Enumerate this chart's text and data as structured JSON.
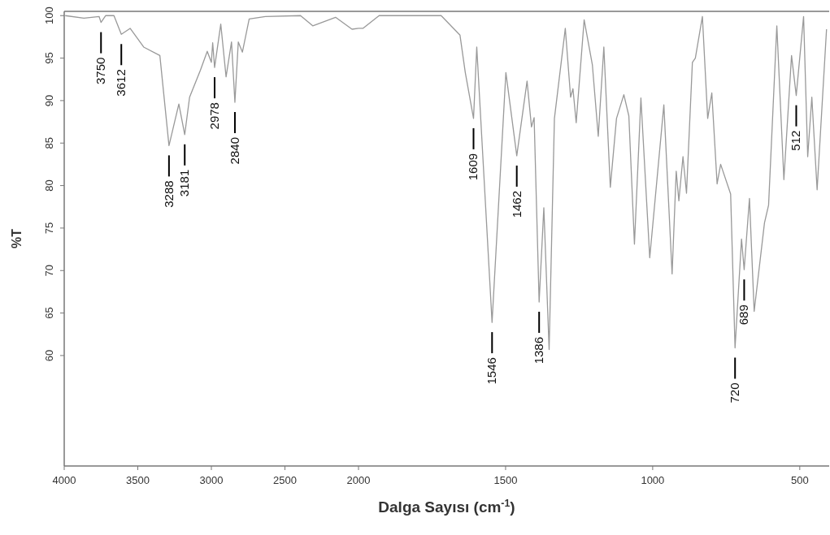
{
  "chart_data": [
    {
      "type": "line",
      "ylabel": "%T",
      "xlim": [
        4000,
        2000
      ],
      "xticks": [
        4000,
        3500,
        3000,
        2500,
        2000
      ],
      "ylim": [
        47,
        100.5
      ],
      "yticks": [
        60,
        65,
        70,
        75,
        80,
        85,
        90,
        95,
        100
      ],
      "series": [
        {
          "color": "#999999",
          "x": [
            3993,
            3866,
            3763,
            3750,
            3718,
            3662,
            3612,
            3552,
            3460,
            3350,
            3288,
            3221,
            3181,
            3148,
            3074,
            3028,
            3000,
            2991,
            2978,
            2936,
            2900,
            2863,
            2840,
            2817,
            2789,
            2743,
            2633,
            2394,
            2311,
            2156,
            2044,
            2000
          ],
          "values": [
            100,
            99.7,
            99.9,
            99.2,
            100,
            100,
            97.8,
            98.5,
            96.3,
            95.3,
            84.7,
            89.6,
            86.0,
            90.4,
            93.6,
            95.8,
            94.5,
            96.8,
            93.9,
            99.0,
            92.8,
            96.9,
            89.8,
            96.9,
            95.7,
            99.6,
            99.9,
            100,
            98.8,
            99.8,
            98.4,
            98.5
          ]
        }
      ],
      "annotations": [
        {
          "text": "3750",
          "x": 3750,
          "y": 99.2
        },
        {
          "text": "3612",
          "x": 3612,
          "y": 97.8
        },
        {
          "text": "3288",
          "x": 3288,
          "y": 84.7
        },
        {
          "text": "3181",
          "x": 3181,
          "y": 86.0
        },
        {
          "text": "2978",
          "x": 2978,
          "y": 93.9
        },
        {
          "text": "2840",
          "x": 2840,
          "y": 89.8
        }
      ]
    },
    {
      "type": "line",
      "xlabel": "Dalga Sayısı (cm$^{-1}$)",
      "xlim": [
        2000,
        400
      ],
      "xticks": [
        1500,
        1000,
        500
      ],
      "ylim": [
        47,
        100.5
      ],
      "tick_labels": "x",
      "series": [
        {
          "color": "#999999",
          "x": [
            2000,
            1985,
            1930,
            1738,
            1719,
            1655,
            1637,
            1609,
            1598,
            1546,
            1499,
            1462,
            1427,
            1412,
            1403,
            1386,
            1370,
            1352,
            1334,
            1297,
            1279,
            1271,
            1260,
            1233,
            1205,
            1185,
            1166,
            1144,
            1123,
            1098,
            1081,
            1062,
            1040,
            1010,
            962,
            934,
            920,
            911,
            897,
            885,
            865,
            855,
            831,
            813,
            799,
            781,
            769,
            735,
            720,
            698,
            689,
            671,
            655,
            620,
            606,
            578,
            554,
            528,
            512,
            487,
            473,
            459,
            441,
            409
          ],
          "values": [
            98.5,
            98.5,
            100,
            100,
            100,
            97.7,
            93.3,
            87.9,
            96.3,
            63.9,
            93.3,
            83.5,
            92.3,
            86.9,
            88.0,
            66.3,
            77.4,
            60.7,
            87.9,
            98.5,
            90.4,
            91.4,
            87.4,
            99.5,
            94.2,
            85.8,
            96.3,
            79.8,
            87.9,
            90.7,
            88.2,
            73.1,
            90.3,
            71.5,
            89.5,
            69.6,
            81.7,
            78.2,
            83.4,
            79.1,
            94.5,
            95.0,
            99.9,
            87.9,
            90.9,
            80.2,
            82.5,
            79.0,
            60.9,
            73.7,
            70.1,
            78.5,
            65.2,
            75.6,
            77.7,
            98.8,
            80.7,
            95.3,
            90.6,
            99.9,
            83.4,
            90.4,
            79.5,
            98.4
          ]
        }
      ],
      "annotations": [
        {
          "text": "1609",
          "x": 1609,
          "y": 87.9
        },
        {
          "text": "1546",
          "x": 1546,
          "y": 63.9
        },
        {
          "text": "1462",
          "x": 1462,
          "y": 83.5
        },
        {
          "text": "1386",
          "x": 1386,
          "y": 66.3
        },
        {
          "text": "720",
          "x": 720,
          "y": 60.9
        },
        {
          "text": "689",
          "x": 689,
          "y": 70.1
        },
        {
          "text": "512",
          "x": 512,
          "y": 90.6
        }
      ]
    }
  ]
}
